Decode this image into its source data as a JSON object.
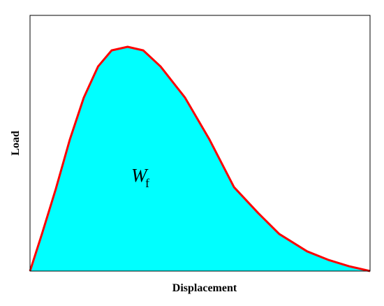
{
  "chart_data": {
    "type": "area",
    "x_label": "Displacement",
    "y_label": "Load",
    "annotation": {
      "text": "W",
      "subscript": "f"
    },
    "x": [
      0,
      0.035,
      0.076,
      0.117,
      0.158,
      0.2,
      0.24,
      0.287,
      0.333,
      0.384,
      0.456,
      0.528,
      0.6,
      0.671,
      0.733,
      0.815,
      0.877,
      0.938,
      1
    ],
    "series": [
      {
        "color": "#ff0000",
        "fill": "#00ffff",
        "values": [
          0,
          0.145,
          0.322,
          0.514,
          0.678,
          0.8,
          0.863,
          0.877,
          0.863,
          0.8,
          0.678,
          0.514,
          0.328,
          0.227,
          0.145,
          0.077,
          0.044,
          0.019,
          0
        ]
      }
    ],
    "xlim": [
      0,
      1
    ],
    "ylim": [
      0,
      1
    ]
  }
}
